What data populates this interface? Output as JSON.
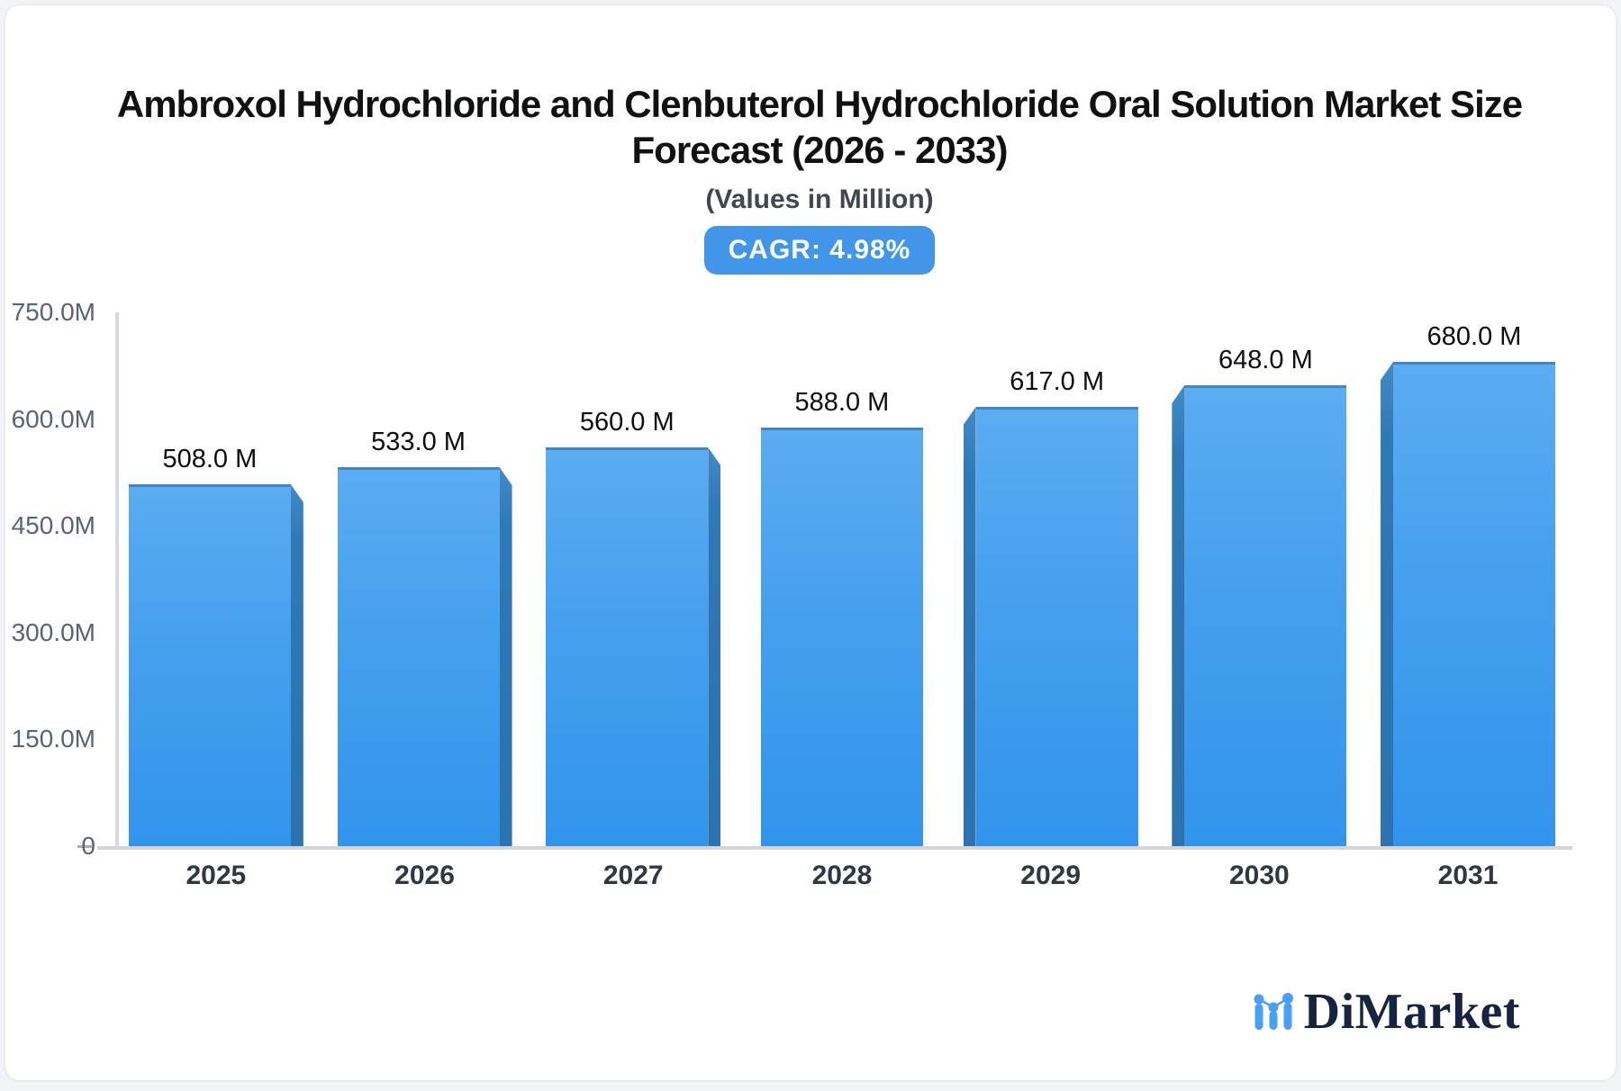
{
  "header": {
    "title_line1": "Ambroxol Hydrochloride and Clenbuterol Hydrochloride Oral Solution Market Size",
    "title_line2": "Forecast (2026 - 2033)",
    "subtitle": "(Values in Million)",
    "cagr_badge": "CAGR: 4.98%"
  },
  "chart_data": {
    "type": "bar",
    "title": "Ambroxol Hydrochloride and Clenbuterol Hydrochloride Oral Solution Market Size Forecast (2026 - 2033)",
    "subtitle": "(Values in Million)",
    "cagr_percent": 4.98,
    "unit": "Million",
    "categories": [
      "2025",
      "2026",
      "2027",
      "2028",
      "2029",
      "2030",
      "2031"
    ],
    "values": [
      508,
      533,
      560,
      588,
      617,
      648,
      680
    ],
    "value_labels": [
      "508.0 M",
      "533.0 M",
      "560.0 M",
      "588.0 M",
      "617.0 M",
      "648.0 M",
      "680.0 M"
    ],
    "ylim": [
      0,
      750
    ],
    "yticks": [
      {
        "value": 0,
        "label": "0"
      },
      {
        "value": 150,
        "label": "150.0M"
      },
      {
        "value": 300,
        "label": "300.0M"
      },
      {
        "value": 450,
        "label": "450.0M"
      },
      {
        "value": 600,
        "label": "600.0M"
      },
      {
        "value": 750,
        "label": "750.0M"
      }
    ],
    "grid": false,
    "legend_position": "none",
    "bar_style": "3d-perspective-center-vanishing",
    "colors": {
      "bar_face_top": "#5bacf1",
      "bar_face_bottom": "#3294ec",
      "bar_top_edge": "#4285c5",
      "bar_side_face": "#2e77b4",
      "badge_background": "#4196e9",
      "axis_line": "#d2d5da",
      "y_tick_text": "#57637a",
      "x_tick_text": "#2e3845"
    }
  },
  "logo": {
    "text": "DiMarket",
    "icon": "mini-bar-chart-icon",
    "icon_color": "#47a0f4",
    "text_color": "#172440"
  }
}
